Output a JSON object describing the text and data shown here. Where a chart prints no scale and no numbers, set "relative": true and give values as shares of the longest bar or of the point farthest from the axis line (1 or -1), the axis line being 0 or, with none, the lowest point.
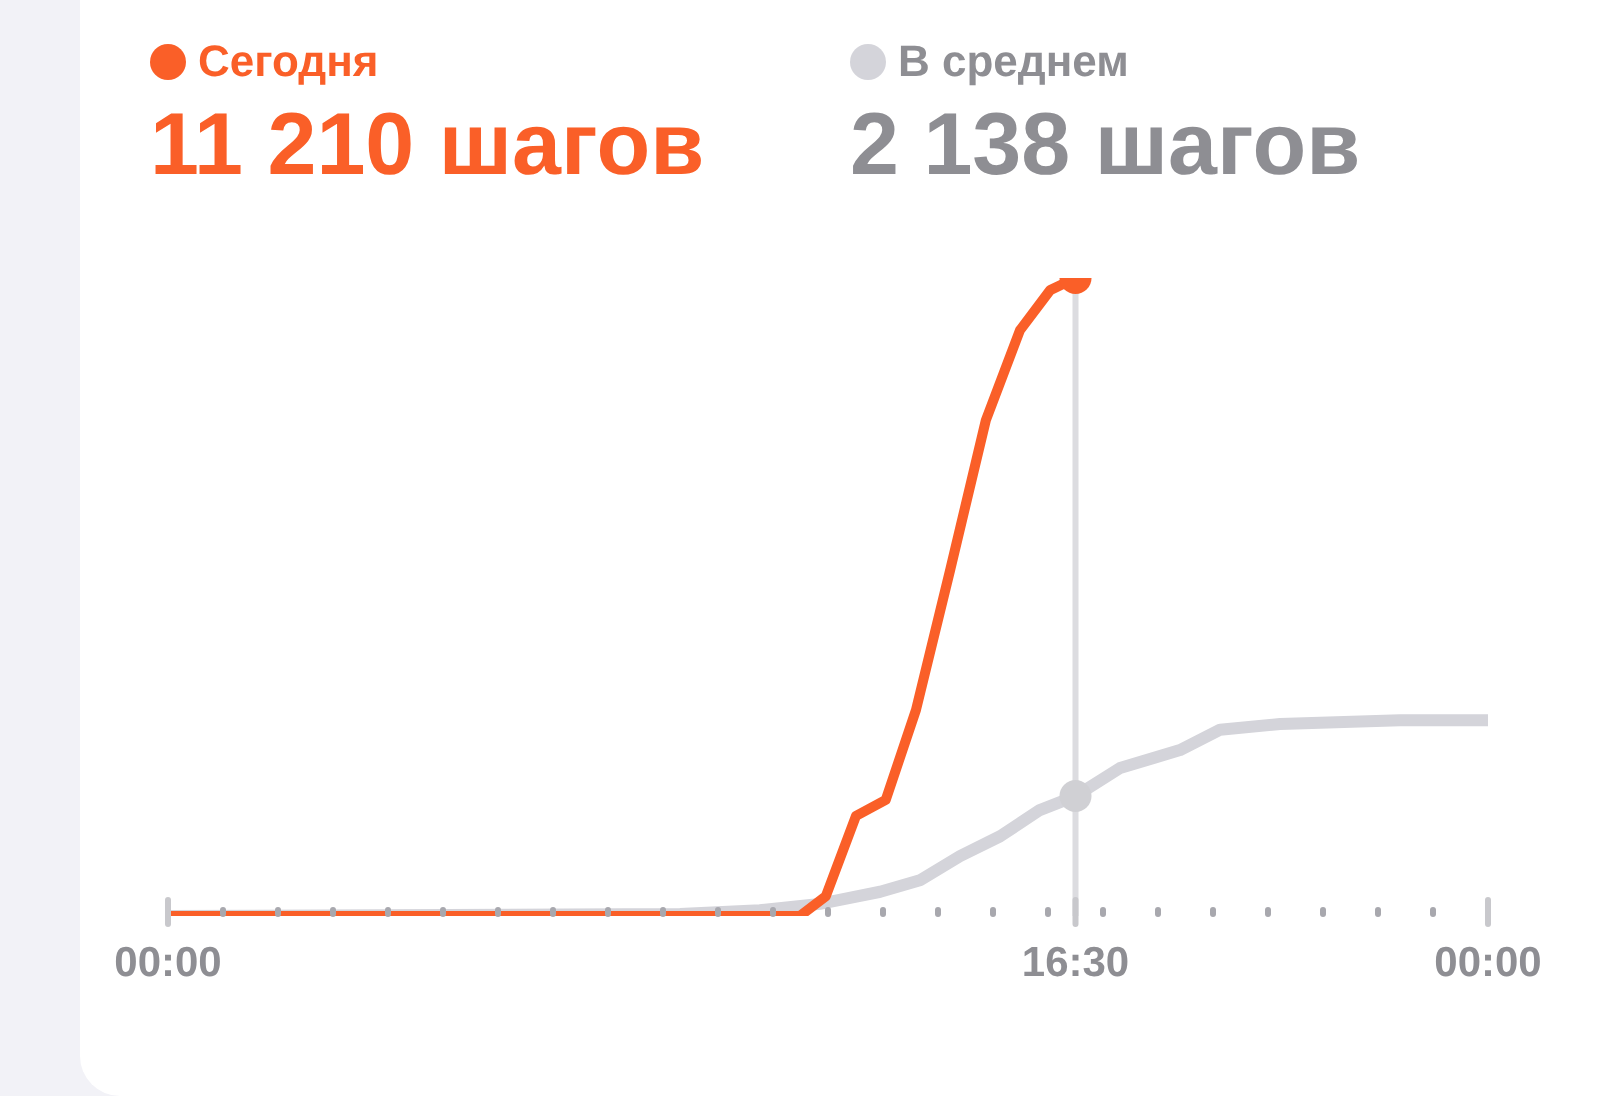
{
  "chart_data": {
    "type": "line",
    "relative": true,
    "legend": "top left",
    "line_style": "solid",
    "grid": false,
    "annotations": [
      "11 210 шагов",
      "2 138 шагов"
    ],
    "xlim": [
      0,
      24
    ],
    "xticks": [
      {
        "value": 0,
        "label": "00:00"
      },
      {
        "value": 1,
        "label": null
      },
      {
        "value": 2,
        "label": null
      },
      {
        "value": 3,
        "label": null
      },
      {
        "value": 4,
        "label": null
      },
      {
        "value": 5,
        "label": null
      },
      {
        "value": 6,
        "label": null
      },
      {
        "value": 7,
        "label": null
      },
      {
        "value": 8,
        "label": null
      },
      {
        "value": 9,
        "label": null
      },
      {
        "value": 10,
        "label": null
      },
      {
        "value": 11,
        "label": null
      },
      {
        "value": 12,
        "label": null
      },
      {
        "value": 13,
        "label": null
      },
      {
        "value": 14,
        "label": null
      },
      {
        "value": 15,
        "label": null
      },
      {
        "value": 16,
        "label": null
      },
      {
        "value": 16.5,
        "label": "16:30"
      },
      {
        "value": 17,
        "label": null
      },
      {
        "value": 18,
        "label": null
      },
      {
        "value": 19,
        "label": null
      },
      {
        "value": 20,
        "label": null
      },
      {
        "value": 21,
        "label": null
      },
      {
        "value": 22,
        "label": null
      },
      {
        "value": 23,
        "label": null
      },
      {
        "value": 24,
        "label": "00:00"
      }
    ],
    "ref_lines": [
      {
        "axis": "x",
        "value": 16.5,
        "label": null,
        "color": "#dcdce0"
      }
    ],
    "series": [
      {
        "name": "В среднем",
        "color": "#d4d4da",
        "x": [
          0,
          9.31,
          10.76,
          11.85,
          12.95,
          13.67,
          14.4,
          15.13,
          15.85,
          16.5,
          17.31,
          18.4,
          19.13,
          20.22,
          22.4,
          24
        ],
        "values": [
          0,
          0.003,
          0.009,
          0.019,
          0.038,
          0.056,
          0.094,
          0.125,
          0.166,
          0.188,
          0.232,
          0.26,
          0.292,
          0.301,
          0.307,
          0.307
        ]
      },
      {
        "name": "Сегодня",
        "color": "#fa5f28",
        "x": [
          0,
          11.49,
          11.96,
          12.51,
          13.05,
          13.6,
          14.22,
          14.87,
          15.49,
          16.04,
          16.5
        ],
        "values": [
          0,
          0,
          0.031,
          0.157,
          0.182,
          0.323,
          0.542,
          0.777,
          0.918,
          0.981,
          1
        ]
      }
    ]
  }
}
